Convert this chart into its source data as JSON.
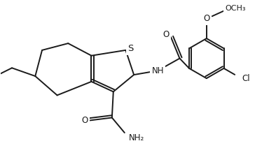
{
  "bg_color": "#ffffff",
  "line_color": "#1a1a1a",
  "line_width": 1.4,
  "font_size": 8.5,
  "figsize": [
    3.94,
    2.22
  ],
  "dpi": 100,
  "xlim": [
    0,
    10
  ],
  "ylim": [
    0,
    5.6
  ]
}
